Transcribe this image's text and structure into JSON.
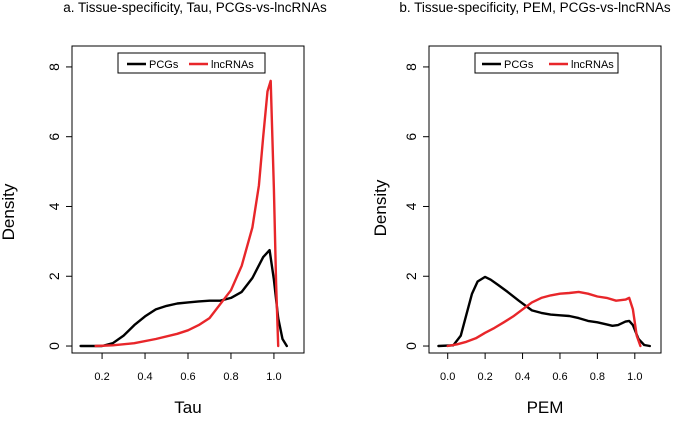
{
  "chart_data": [
    {
      "type": "line",
      "title": "a. Tissue-specificity, Tau, PCGs-vs-lncRNAs",
      "xlabel": "Tau",
      "ylabel": "Density",
      "xlim": [
        0.06,
        1.14
      ],
      "ylim": [
        -0.2,
        8.6
      ],
      "xticks": [
        0.2,
        0.4,
        0.6,
        0.8,
        1.0
      ],
      "xtick_labels": [
        "0.2",
        "0.4",
        "0.6",
        "0.8",
        "1.0"
      ],
      "yticks": [
        0,
        2,
        4,
        6,
        8
      ],
      "ytick_labels": [
        "0",
        "2",
        "4",
        "6",
        "8"
      ],
      "legend": {
        "placement": "top-center",
        "entries": [
          "PCGs",
          "lncRNAs"
        ]
      },
      "series": [
        {
          "name": "PCGs",
          "color": "#000000",
          "x": [
            0.1,
            0.2,
            0.25,
            0.3,
            0.35,
            0.4,
            0.45,
            0.5,
            0.55,
            0.6,
            0.65,
            0.7,
            0.75,
            0.8,
            0.85,
            0.9,
            0.95,
            0.98,
            1.0,
            1.02,
            1.04,
            1.06
          ],
          "y": [
            0.0,
            0.0,
            0.08,
            0.3,
            0.6,
            0.85,
            1.05,
            1.15,
            1.22,
            1.25,
            1.28,
            1.3,
            1.3,
            1.38,
            1.55,
            1.95,
            2.55,
            2.75,
            1.9,
            0.8,
            0.2,
            0.0
          ]
        },
        {
          "name": "lncRNAs",
          "color": "#e8262a",
          "x": [
            0.17,
            0.25,
            0.35,
            0.45,
            0.55,
            0.6,
            0.65,
            0.7,
            0.75,
            0.8,
            0.85,
            0.9,
            0.93,
            0.95,
            0.97,
            0.985,
            1.0,
            1.01,
            1.02
          ],
          "y": [
            0.0,
            0.02,
            0.08,
            0.2,
            0.35,
            0.45,
            0.6,
            0.8,
            1.2,
            1.6,
            2.3,
            3.4,
            4.6,
            6.0,
            7.3,
            7.6,
            4.5,
            1.8,
            0.0
          ]
        }
      ]
    },
    {
      "type": "line",
      "title": "b. Tissue-specificity, PEM, PCGs-vs-lncRNAs",
      "xlabel": "PEM",
      "ylabel": "Density",
      "xlim": [
        -0.1,
        1.14
      ],
      "ylim": [
        -0.2,
        8.6
      ],
      "xticks": [
        0.0,
        0.2,
        0.4,
        0.6,
        0.8,
        1.0
      ],
      "xtick_labels": [
        "0.0",
        "0.2",
        "0.4",
        "0.6",
        "0.8",
        "1.0"
      ],
      "yticks": [
        0,
        2,
        4,
        6,
        8
      ],
      "ytick_labels": [
        "0",
        "2",
        "4",
        "6",
        "8"
      ],
      "legend": {
        "placement": "top-center",
        "entries": [
          "PCGs",
          "lncRNAs"
        ]
      },
      "series": [
        {
          "name": "PCGs",
          "color": "#000000",
          "x": [
            -0.05,
            0.03,
            0.07,
            0.1,
            0.13,
            0.16,
            0.2,
            0.23,
            0.27,
            0.32,
            0.38,
            0.45,
            0.5,
            0.55,
            0.6,
            0.65,
            0.7,
            0.75,
            0.8,
            0.85,
            0.88,
            0.91,
            0.95,
            0.97,
            0.99,
            1.02,
            1.05,
            1.08
          ],
          "y": [
            0.0,
            0.02,
            0.3,
            0.9,
            1.5,
            1.85,
            1.98,
            1.9,
            1.75,
            1.55,
            1.3,
            1.02,
            0.95,
            0.9,
            0.88,
            0.86,
            0.8,
            0.72,
            0.68,
            0.62,
            0.58,
            0.6,
            0.7,
            0.72,
            0.6,
            0.2,
            0.03,
            0.0
          ]
        },
        {
          "name": "lncRNAs",
          "color": "#e8262a",
          "x": [
            0.0,
            0.05,
            0.1,
            0.15,
            0.2,
            0.25,
            0.3,
            0.35,
            0.4,
            0.45,
            0.5,
            0.55,
            0.6,
            0.65,
            0.7,
            0.75,
            0.8,
            0.85,
            0.9,
            0.95,
            0.97,
            0.99,
            1.01,
            1.03
          ],
          "y": [
            0.0,
            0.05,
            0.12,
            0.22,
            0.38,
            0.52,
            0.68,
            0.85,
            1.05,
            1.25,
            1.38,
            1.45,
            1.5,
            1.52,
            1.55,
            1.5,
            1.42,
            1.38,
            1.3,
            1.33,
            1.38,
            1.05,
            0.3,
            0.0
          ]
        }
      ]
    }
  ]
}
